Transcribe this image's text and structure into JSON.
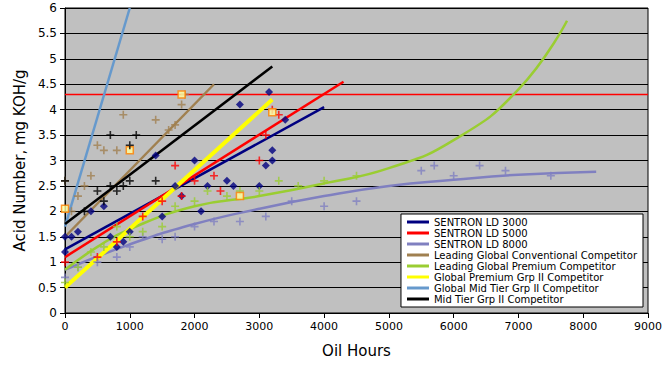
{
  "chart_data": {
    "type": "scatter",
    "x_label": "Oil Hours",
    "y_label": "Acid Number, mg KOH/g",
    "xlim": [
      0,
      9000
    ],
    "xticks": [
      0,
      1000,
      2000,
      3000,
      4000,
      5000,
      6000,
      7000,
      8000,
      9000
    ],
    "ylim": [
      0,
      6
    ],
    "yticks": [
      0,
      0.5,
      1,
      1.5,
      2,
      2.5,
      3,
      3.5,
      4,
      4.5,
      5,
      5.5,
      6
    ],
    "grid": true,
    "legend": "lower right",
    "reference_lines": [
      {
        "y": 4.3,
        "color": "#ff0000"
      }
    ],
    "series": [
      {
        "name": "SENTRON LD 3000",
        "color": "#000080",
        "marker": "diamond",
        "x": [
          0,
          0,
          100,
          200,
          400,
          600,
          700,
          800,
          900,
          1000,
          1400,
          1500,
          1700,
          1800,
          2000,
          2100,
          2200,
          2500,
          2600,
          2700,
          3000,
          3100,
          3150,
          3200,
          3200,
          3400
        ],
        "values": [
          1.5,
          1.2,
          1.5,
          1.6,
          2.0,
          2.1,
          1.5,
          1.3,
          1.4,
          1.6,
          3.1,
          1.9,
          2.5,
          2.3,
          3.0,
          2.0,
          2.5,
          2.6,
          2.5,
          4.1,
          2.5,
          2.9,
          4.35,
          3.0,
          3.2,
          3.8
        ],
        "fit_x": [
          0,
          4000
        ],
        "fit_values": [
          1.25,
          4.05
        ]
      },
      {
        "name": "SENTRON LD 5000",
        "color": "#ff0000",
        "marker": "plus",
        "x": [
          0,
          500,
          800,
          1200,
          1500,
          1700,
          1800,
          2000,
          2300,
          2400,
          3000,
          3100,
          3200,
          3300
        ],
        "values": [
          1.0,
          1.1,
          1.4,
          1.9,
          2.2,
          2.9,
          2.3,
          2.6,
          2.7,
          2.4,
          3.0,
          3.5,
          4.0,
          3.9
        ],
        "fit_x": [
          0,
          4300
        ],
        "fit_values": [
          1.1,
          4.55
        ]
      },
      {
        "name": "SENTRON LD 8000",
        "color": "#8080c0",
        "marker": "plus",
        "x": [
          0,
          200,
          500,
          800,
          1000,
          1200,
          1500,
          1700,
          2000,
          2300,
          2700,
          3100,
          3500,
          4000,
          4500,
          5500,
          5700,
          6000,
          6400,
          6800,
          7500
        ],
        "values": [
          0.7,
          0.9,
          1.0,
          1.1,
          1.3,
          1.5,
          1.45,
          1.5,
          1.7,
          1.8,
          1.8,
          1.9,
          2.2,
          2.1,
          2.2,
          2.8,
          2.9,
          2.7,
          2.9,
          2.8,
          2.7
        ],
        "fit_x": [
          0,
          1000,
          2000,
          3000,
          4000,
          5000,
          6000,
          7000,
          8200
        ],
        "fit_values": [
          0.85,
          1.35,
          1.75,
          2.05,
          2.3,
          2.5,
          2.62,
          2.72,
          2.78
        ]
      },
      {
        "name": "Leading Global Conventional Competitor",
        "color": "#a08050",
        "marker": "plus",
        "x": [
          0,
          100,
          200,
          300,
          400,
          500,
          600,
          800,
          900,
          1400,
          1600,
          1700,
          1800,
          1850
        ],
        "values": [
          2.6,
          2.0,
          2.3,
          2.5,
          2.7,
          3.3,
          3.2,
          3.2,
          3.9,
          3.8,
          3.6,
          3.7,
          4.1,
          4.3
        ],
        "fit_x": [
          0,
          2300
        ],
        "fit_values": [
          1.5,
          4.5
        ]
      },
      {
        "name": "Leading Global Premium Competitor",
        "color": "#9acd32",
        "marker": "plus",
        "x": [
          0,
          200,
          400,
          600,
          800,
          1000,
          1200,
          1500,
          1700,
          2000,
          2200,
          2500,
          2700,
          3000,
          3300,
          3600,
          4000,
          4500
        ],
        "values": [
          0.6,
          0.9,
          1.2,
          1.3,
          1.7,
          1.5,
          1.6,
          1.7,
          2.1,
          2.2,
          2.4,
          2.3,
          2.4,
          2.4,
          2.6,
          2.5,
          2.6,
          2.7
        ],
        "fit_x": [
          0,
          500,
          1000,
          2000,
          3000,
          4000,
          5000,
          6000,
          7000,
          7750
        ],
        "fit_values": [
          0.85,
          1.3,
          1.65,
          2.1,
          2.3,
          2.55,
          2.85,
          3.4,
          4.4,
          5.75
        ]
      },
      {
        "name": "Global Premium Grp II Competitor",
        "color": "#ffff00",
        "marker": "square",
        "x": [
          0,
          1000,
          1800,
          2700,
          3200
        ],
        "values": [
          2.05,
          3.2,
          4.3,
          2.3,
          3.95
        ],
        "fit_x": [
          0,
          3200
        ],
        "fit_values": [
          0.5,
          4.2
        ]
      },
      {
        "name": "Global Mid Tier Grp II Competitor",
        "color": "#6699cc",
        "marker": "plus",
        "x": [],
        "values": [],
        "fit_x": [
          0,
          1000
        ],
        "fit_values": [
          1.7,
          6.0
        ]
      },
      {
        "name": "Mid Tier Grp II Competitor",
        "color": "#000000",
        "marker": "plus",
        "x": [
          0,
          300,
          500,
          600,
          700,
          700,
          800,
          900,
          1000,
          1000,
          1100,
          1400
        ],
        "values": [
          2.6,
          2.0,
          2.4,
          2.2,
          2.5,
          3.5,
          2.4,
          2.5,
          2.6,
          3.3,
          3.5,
          2.6
        ],
        "fit_x": [
          0,
          3200
        ],
        "fit_values": [
          1.75,
          4.85
        ]
      }
    ]
  }
}
